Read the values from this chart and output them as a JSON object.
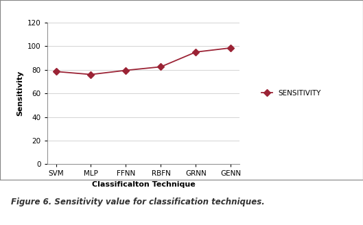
{
  "categories": [
    "SVM",
    "MLP",
    "FFNN",
    "RBFN",
    "GRNN",
    "GENN"
  ],
  "values": [
    78.5,
    76.0,
    79.5,
    82.5,
    95.0,
    98.5
  ],
  "line_color": "#9b2335",
  "marker": "D",
  "marker_size": 5,
  "xlabel": "Classificalton Technique",
  "ylabel": "Sensitivity",
  "ylim": [
    0,
    120
  ],
  "yticks": [
    0,
    20,
    40,
    60,
    80,
    100,
    120
  ],
  "legend_label": "SENSITIVITY",
  "axis_fontsize": 8,
  "tick_fontsize": 7.5,
  "legend_fontsize": 7.5,
  "figure_caption": "Figure 6. Sensitivity value for classification techniques.",
  "bg_color": "#ffffff",
  "grid_color": "#cccccc",
  "border_color": "#888888"
}
